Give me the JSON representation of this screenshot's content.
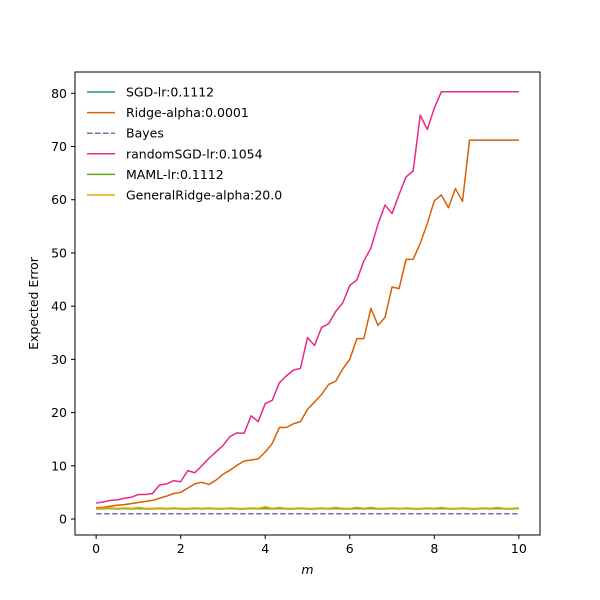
{
  "chart_data": {
    "type": "line",
    "title": "",
    "xlabel": "m",
    "ylabel": "Expected Error",
    "xlim": [
      -0.5,
      10.5
    ],
    "ylim": [
      -3,
      84
    ],
    "xticks": [
      0,
      2,
      4,
      6,
      8,
      10
    ],
    "yticks": [
      0,
      10,
      20,
      30,
      40,
      50,
      60,
      70,
      80
    ],
    "grid": false,
    "legend_position": "top-left",
    "x": [
      0,
      0.1667,
      0.3333,
      0.5,
      0.6667,
      0.8333,
      1,
      1.1667,
      1.3333,
      1.5,
      1.6667,
      1.8333,
      2,
      2.1667,
      2.3333,
      2.5,
      2.6667,
      2.8333,
      3,
      3.1667,
      3.3333,
      3.5,
      3.6667,
      3.8333,
      4,
      4.1667,
      4.3333,
      4.5,
      4.6667,
      4.8333,
      5,
      5.1667,
      5.3333,
      5.5,
      5.6667,
      5.8333,
      6,
      6.1667,
      6.3333,
      6.5,
      6.6667,
      6.8333,
      7,
      7.1667,
      7.3333,
      7.5,
      7.6667,
      7.8333,
      8,
      8.1667,
      8.3333,
      8.5,
      8.6667,
      8.8333,
      9,
      9.1667,
      9.3333,
      9.5,
      9.6667,
      9.8333,
      10
    ],
    "series": [
      {
        "name": "SGD-lr:0.1112",
        "color": "#1b9e77",
        "dash": "solid",
        "values": [
          1.9,
          1.9,
          2.0,
          1.9,
          2.0,
          1.9,
          2.0,
          1.9,
          1.9,
          2.0,
          1.9,
          2.0,
          1.9,
          1.9,
          2.0,
          1.9,
          2.0,
          1.9,
          1.9,
          2.0,
          1.9,
          1.9,
          2.0,
          1.9,
          2.0,
          1.9,
          2.0,
          1.9,
          1.9,
          2.0,
          1.9,
          1.9,
          2.0,
          1.9,
          2.0,
          1.9,
          1.9,
          2.0,
          1.9,
          2.0,
          1.9,
          1.9,
          2.0,
          1.9,
          2.0,
          1.9,
          1.9,
          2.0,
          1.9,
          2.0,
          1.9,
          1.9,
          2.0,
          1.9,
          1.9,
          2.0,
          1.9,
          2.0,
          1.9,
          1.9,
          2.0
        ]
      },
      {
        "name": "Ridge-alpha:0.0001",
        "color": "#d95f02",
        "dash": "solid",
        "values": [
          2.1,
          2.2,
          2.4,
          2.6,
          2.7,
          2.9,
          3.1,
          3.3,
          3.5,
          3.9,
          4.3,
          4.8,
          5.0,
          5.8,
          6.6,
          6.9,
          6.5,
          7.3,
          8.4,
          9.2,
          10.1,
          10.9,
          11.1,
          11.3,
          12.6,
          14.2,
          17.2,
          17.2,
          17.9,
          18.3,
          20.6,
          22.0,
          23.4,
          25.3,
          25.9,
          28.2,
          30.0,
          33.9,
          33.9,
          39.6,
          36.4,
          37.9,
          43.6,
          43.3,
          48.8,
          48.8,
          51.8,
          55.5,
          59.8,
          60.9,
          58.5,
          62.1,
          59.7,
          71.2,
          71.2,
          71.2,
          71.2,
          71.2,
          71.2,
          71.2,
          71.2
        ]
      },
      {
        "name": "Bayes",
        "color": "#7570b3",
        "dash": "dashed",
        "values": [
          1.0,
          1.0,
          1.0,
          1.0,
          1.0,
          1.0,
          1.0,
          1.0,
          1.0,
          1.0,
          1.0,
          1.0,
          1.0,
          1.0,
          1.0,
          1.0,
          1.0,
          1.0,
          1.0,
          1.0,
          1.0,
          1.0,
          1.0,
          1.0,
          1.0,
          1.0,
          1.0,
          1.0,
          1.0,
          1.0,
          1.0,
          1.0,
          1.0,
          1.0,
          1.0,
          1.0,
          1.0,
          1.0,
          1.0,
          1.0,
          1.0,
          1.0,
          1.0,
          1.0,
          1.0,
          1.0,
          1.0,
          1.0,
          1.0,
          1.0,
          1.0,
          1.0,
          1.0,
          1.0,
          1.0,
          1.0,
          1.0,
          1.0,
          1.0,
          1.0,
          1.0
        ]
      },
      {
        "name": "randomSGD-lr:0.1054",
        "color": "#e7298a",
        "dash": "solid",
        "values": [
          3.0,
          3.2,
          3.5,
          3.6,
          3.9,
          4.1,
          4.6,
          4.6,
          4.8,
          6.4,
          6.6,
          7.2,
          7.0,
          9.1,
          8.7,
          10.0,
          11.4,
          12.6,
          13.8,
          15.5,
          16.2,
          16.1,
          19.4,
          18.3,
          21.7,
          22.3,
          25.6,
          26.9,
          28.0,
          28.3,
          34.1,
          32.6,
          36.0,
          36.7,
          39.0,
          40.6,
          43.9,
          44.9,
          48.5,
          50.9,
          55.4,
          59.0,
          57.4,
          61.0,
          64.3,
          65.4,
          75.9,
          73.2,
          77.2,
          80.3,
          80.3,
          80.3,
          80.3,
          80.3,
          80.3,
          80.3,
          80.3,
          80.3,
          80.3,
          80.3,
          80.3
        ]
      },
      {
        "name": "MAML-lr:0.1112",
        "color": "#66a61e",
        "dash": "solid",
        "values": [
          1.9,
          1.9,
          2.0,
          1.9,
          2.0,
          1.9,
          2.0,
          1.9,
          1.9,
          2.0,
          1.9,
          2.0,
          1.9,
          1.9,
          2.0,
          1.9,
          2.0,
          1.9,
          1.9,
          2.0,
          1.9,
          1.9,
          2.0,
          1.9,
          2.0,
          1.9,
          2.0,
          1.9,
          1.9,
          2.0,
          1.9,
          1.9,
          2.0,
          1.9,
          2.0,
          1.9,
          1.9,
          2.0,
          1.9,
          2.0,
          1.9,
          1.9,
          2.0,
          1.9,
          2.0,
          1.9,
          1.9,
          2.0,
          1.9,
          2.0,
          1.9,
          1.9,
          2.0,
          1.9,
          1.9,
          2.0,
          1.9,
          2.0,
          1.9,
          1.9,
          2.0
        ]
      },
      {
        "name": "GeneralRidge-alpha:20.0",
        "color": "#e6ab02",
        "dash": "solid",
        "values": [
          1.9,
          2.0,
          2.1,
          2.0,
          2.1,
          2.0,
          2.2,
          2.0,
          2.0,
          2.1,
          2.0,
          2.1,
          2.0,
          2.0,
          2.1,
          2.0,
          2.1,
          2.0,
          2.0,
          2.1,
          2.0,
          2.0,
          2.1,
          2.0,
          2.3,
          2.0,
          2.2,
          2.0,
          2.0,
          2.1,
          2.0,
          2.0,
          2.1,
          2.0,
          2.2,
          2.0,
          2.0,
          2.2,
          2.0,
          2.2,
          2.0,
          2.0,
          2.1,
          2.0,
          2.1,
          2.0,
          2.0,
          2.1,
          2.0,
          2.2,
          2.0,
          2.0,
          2.1,
          2.0,
          2.0,
          2.1,
          2.0,
          2.2,
          2.0,
          2.0,
          2.1
        ]
      }
    ]
  }
}
